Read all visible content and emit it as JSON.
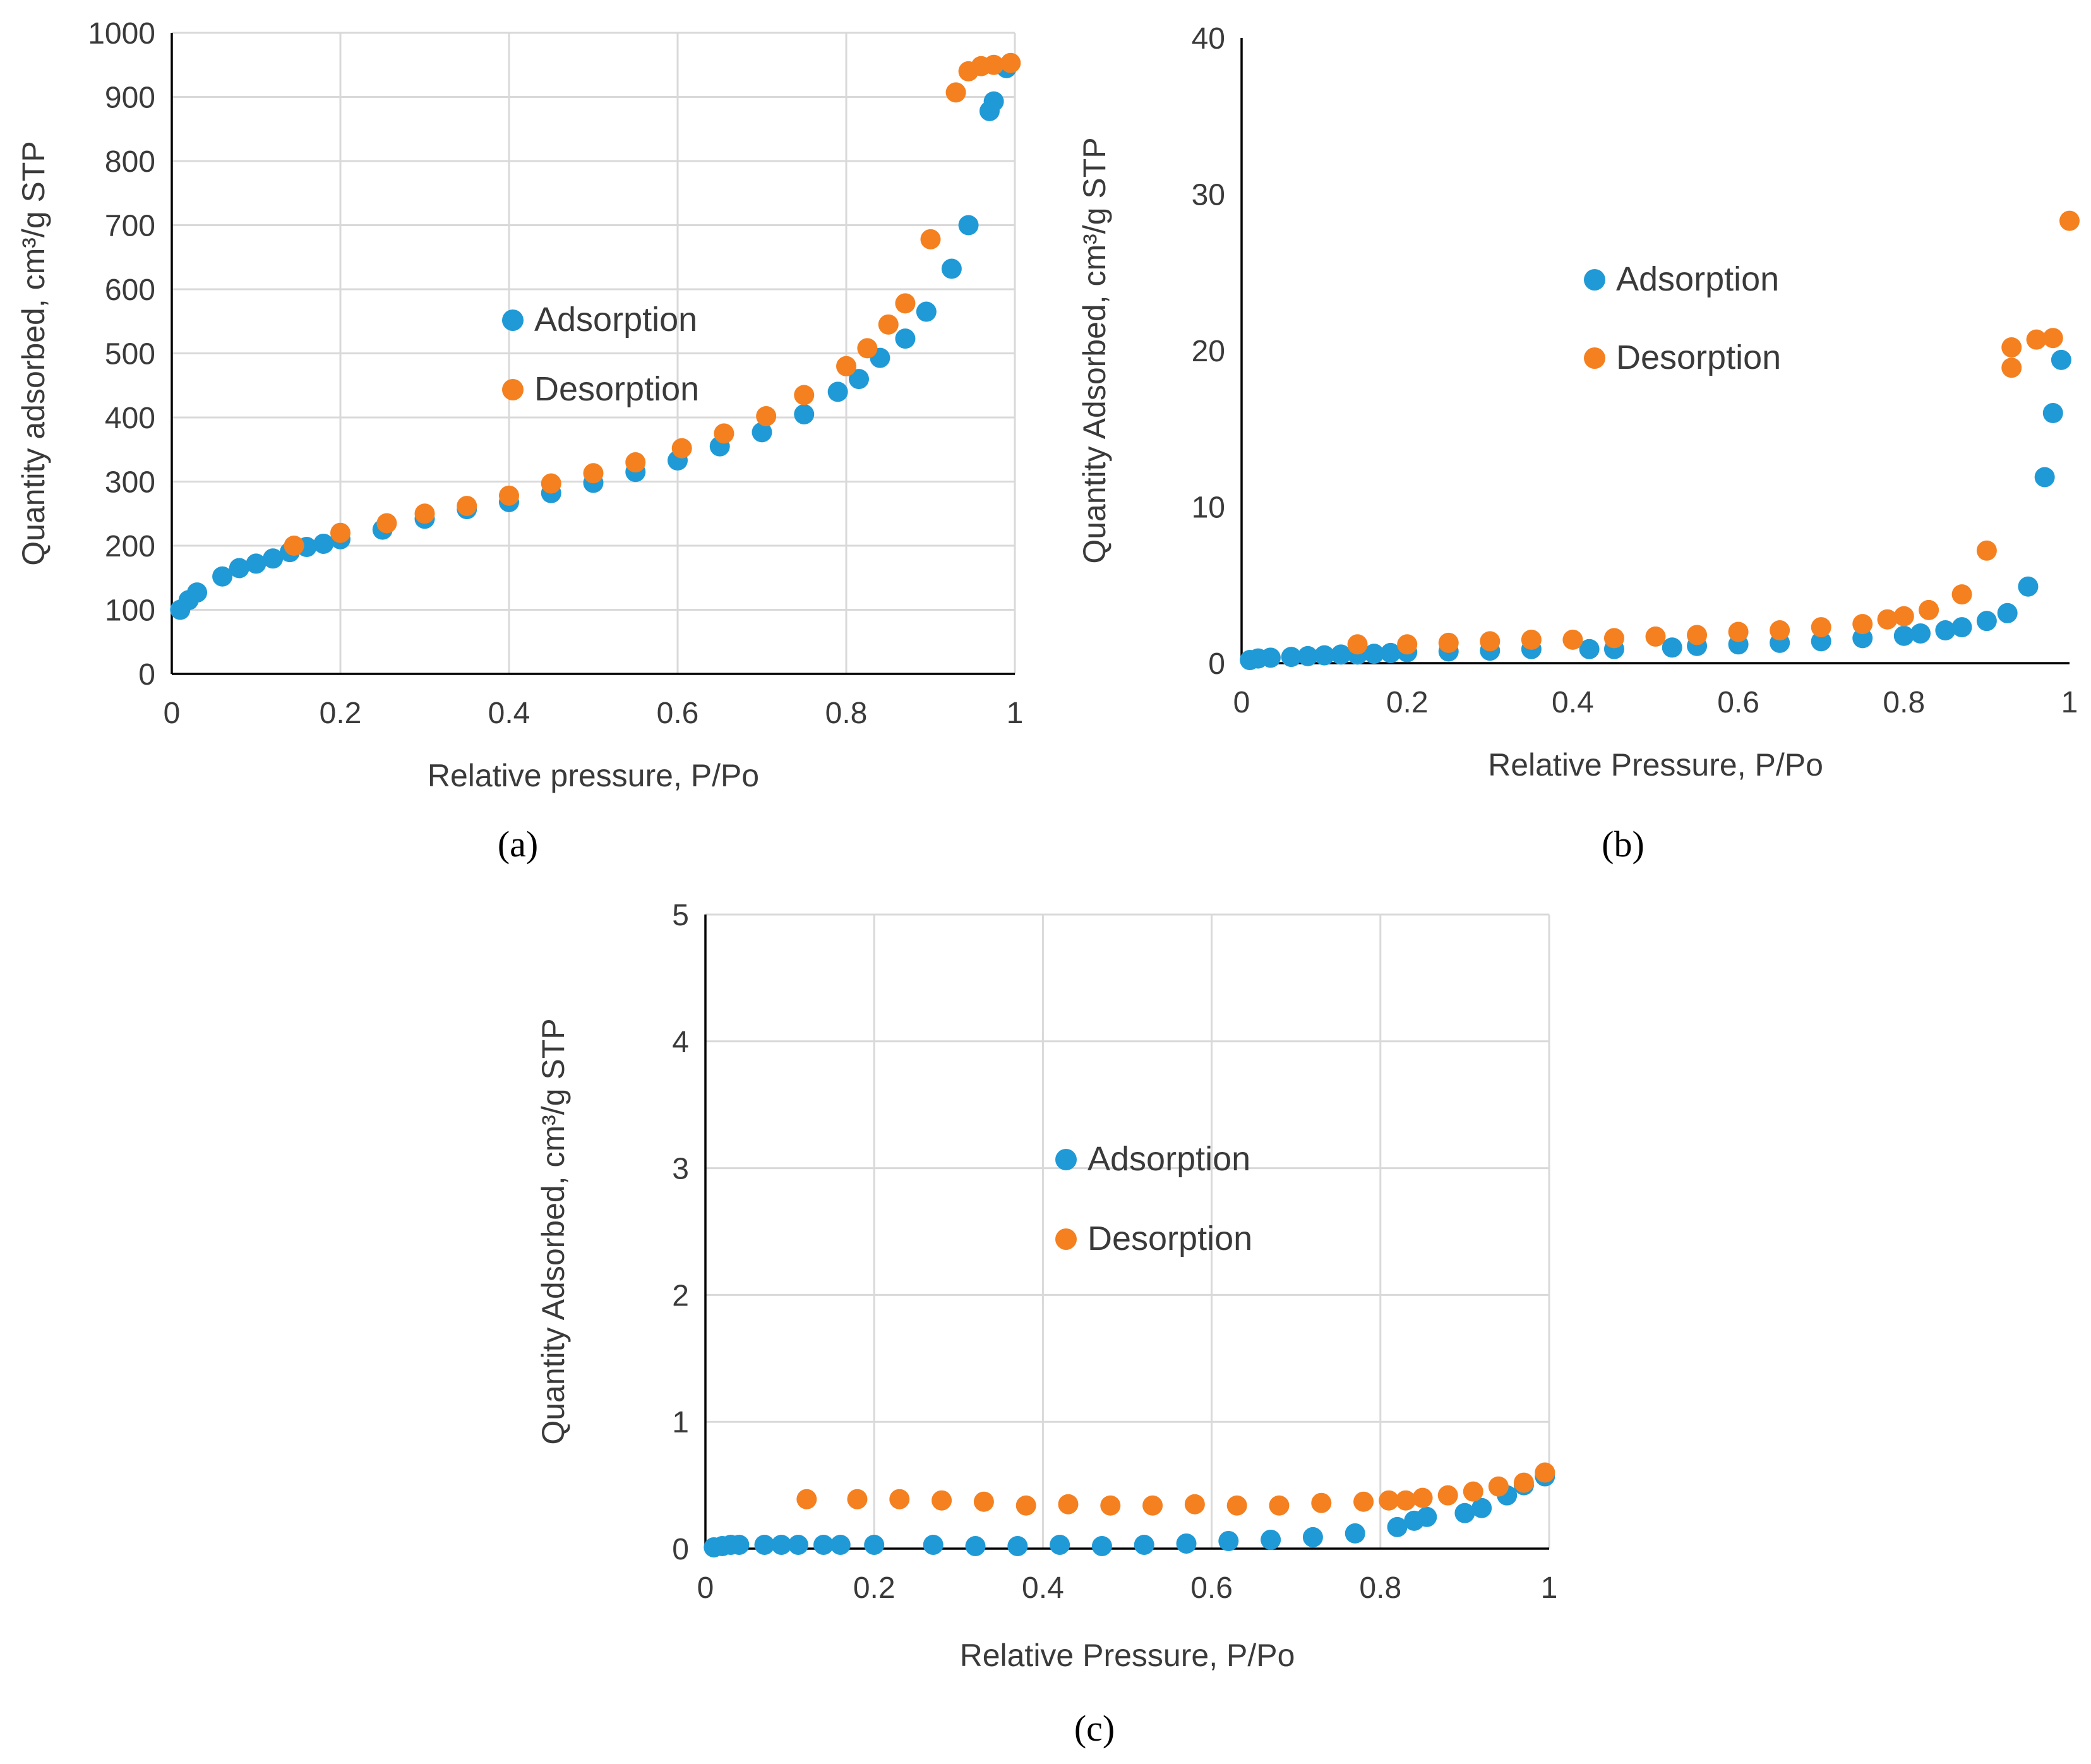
{
  "colors": {
    "adsorption": "#1F9AD6",
    "desorption": "#F5801F"
  },
  "chart_data": [
    {
      "type": "scatter",
      "panel_label": "(a)",
      "xlabel": "Relative pressure, P/Po",
      "ylabel": "Quantity adsorbed, cm³/g STP",
      "xlim": [
        0,
        1
      ],
      "ylim": [
        0,
        1000
      ],
      "xticks": [
        0,
        0.2,
        0.4,
        0.6,
        0.8,
        1
      ],
      "xtick_labels": [
        "0",
        "0.2",
        "0.4",
        "0.6",
        "0.8",
        "1"
      ],
      "yticks": [
        0,
        100,
        200,
        300,
        400,
        500,
        600,
        700,
        800,
        900,
        1000
      ],
      "ytick_labels": [
        "0",
        "100",
        "200",
        "300",
        "400",
        "500",
        "600",
        "700",
        "800",
        "900",
        "1000"
      ],
      "grid": true,
      "legend_position": "center",
      "series": [
        {
          "name": "Adsorption",
          "color": "adsorption",
          "x": [
            0.01,
            0.02,
            0.03,
            0.06,
            0.08,
            0.1,
            0.12,
            0.14,
            0.16,
            0.18,
            0.2,
            0.25,
            0.3,
            0.35,
            0.4,
            0.45,
            0.5,
            0.55,
            0.6,
            0.65,
            0.7,
            0.75,
            0.79,
            0.815,
            0.84,
            0.87,
            0.895,
            0.925,
            0.945,
            0.97,
            0.975,
            0.99
          ],
          "y": [
            100,
            115,
            127,
            152,
            165,
            172,
            180,
            190,
            198,
            203,
            210,
            225,
            242,
            257,
            268,
            282,
            298,
            315,
            333,
            355,
            377,
            405,
            440,
            460,
            493,
            523,
            565,
            632,
            700,
            878,
            893,
            945
          ]
        },
        {
          "name": "Desorption",
          "color": "desorption",
          "x": [
            0.145,
            0.2,
            0.255,
            0.3,
            0.35,
            0.4,
            0.45,
            0.5,
            0.55,
            0.605,
            0.655,
            0.705,
            0.75,
            0.8,
            0.825,
            0.85,
            0.87,
            0.9,
            0.93,
            0.945,
            0.96,
            0.975,
            0.995
          ],
          "y": [
            200,
            220,
            235,
            250,
            262,
            278,
            297,
            313,
            330,
            352,
            375,
            402,
            435,
            480,
            508,
            545,
            578,
            678,
            907,
            940,
            948,
            950,
            953
          ]
        }
      ]
    },
    {
      "type": "scatter",
      "panel_label": "(b)",
      "xlabel": "Relative Pressure, P/Po",
      "ylabel": "Quantity Adsorbed, cm³/g STP",
      "xlim": [
        0,
        1
      ],
      "ylim": [
        0,
        40
      ],
      "xticks": [
        0,
        0.2,
        0.4,
        0.6,
        0.8,
        1
      ],
      "xtick_labels": [
        "0",
        "0.2",
        "0.4",
        "0.6",
        "0.8",
        "1"
      ],
      "yticks": [
        0,
        10,
        20,
        30,
        40
      ],
      "ytick_labels": [
        "0",
        "10",
        "20",
        "30",
        "40"
      ],
      "grid": false,
      "legend_position": "center-right",
      "series": [
        {
          "name": "Adsorption",
          "color": "adsorption",
          "x": [
            0.01,
            0.02,
            0.035,
            0.06,
            0.08,
            0.1,
            0.12,
            0.14,
            0.16,
            0.18,
            0.2,
            0.25,
            0.3,
            0.35,
            0.42,
            0.45,
            0.52,
            0.55,
            0.6,
            0.65,
            0.7,
            0.75,
            0.8,
            0.82,
            0.85,
            0.87,
            0.9,
            0.925,
            0.95,
            0.97,
            0.98,
            0.99
          ],
          "y": [
            0.2,
            0.3,
            0.35,
            0.4,
            0.45,
            0.5,
            0.55,
            0.55,
            0.6,
            0.65,
            0.7,
            0.75,
            0.8,
            0.9,
            0.9,
            0.9,
            1.0,
            1.1,
            1.2,
            1.3,
            1.4,
            1.6,
            1.75,
            1.9,
            2.1,
            2.3,
            2.7,
            3.2,
            4.9,
            11.9,
            16.0,
            19.4
          ]
        },
        {
          "name": "Desorption",
          "color": "desorption",
          "x": [
            0.14,
            0.2,
            0.25,
            0.3,
            0.35,
            0.4,
            0.45,
            0.5,
            0.55,
            0.6,
            0.65,
            0.7,
            0.75,
            0.78,
            0.8,
            0.83,
            0.87,
            0.9,
            0.93,
            0.93,
            0.96,
            0.98,
            1.0
          ],
          "y": [
            1.2,
            1.2,
            1.3,
            1.4,
            1.5,
            1.5,
            1.6,
            1.7,
            1.8,
            2.0,
            2.1,
            2.3,
            2.5,
            2.8,
            3.0,
            3.4,
            4.4,
            7.2,
            18.9,
            20.2,
            20.7,
            20.8,
            28.3
          ]
        }
      ]
    },
    {
      "type": "scatter",
      "panel_label": "(c)",
      "xlabel": "Relative Pressure, P/Po",
      "ylabel": "Quantity Adsorbed, cm³/g STP",
      "xlim": [
        0,
        1
      ],
      "ylim": [
        0,
        5
      ],
      "xticks": [
        0,
        0.2,
        0.4,
        0.6,
        0.8,
        1
      ],
      "xtick_labels": [
        "0",
        "0.2",
        "0.4",
        "0.6",
        "0.8",
        "1"
      ],
      "yticks": [
        0,
        1,
        2,
        3,
        4,
        5
      ],
      "ytick_labels": [
        "0",
        "1",
        "2",
        "3",
        "4",
        "5"
      ],
      "grid": true,
      "legend_position": "center",
      "series": [
        {
          "name": "Adsorption",
          "color": "adsorption",
          "x": [
            0.01,
            0.02,
            0.03,
            0.04,
            0.07,
            0.09,
            0.11,
            0.14,
            0.16,
            0.2,
            0.27,
            0.32,
            0.37,
            0.42,
            0.47,
            0.52,
            0.57,
            0.62,
            0.67,
            0.72,
            0.77,
            0.82,
            0.84,
            0.855,
            0.9,
            0.92,
            0.95,
            0.97,
            0.995
          ],
          "y": [
            0.01,
            0.02,
            0.03,
            0.03,
            0.03,
            0.03,
            0.03,
            0.03,
            0.03,
            0.03,
            0.03,
            0.02,
            0.02,
            0.03,
            0.02,
            0.03,
            0.04,
            0.06,
            0.07,
            0.09,
            0.12,
            0.17,
            0.22,
            0.25,
            0.28,
            0.32,
            0.42,
            0.5,
            0.57
          ]
        },
        {
          "name": "Desorption",
          "color": "desorption",
          "x": [
            0.12,
            0.18,
            0.23,
            0.28,
            0.33,
            0.38,
            0.43,
            0.48,
            0.53,
            0.58,
            0.63,
            0.68,
            0.73,
            0.78,
            0.81,
            0.83,
            0.85,
            0.88,
            0.91,
            0.94,
            0.97,
            0.995
          ],
          "y": [
            0.39,
            0.39,
            0.39,
            0.38,
            0.37,
            0.34,
            0.35,
            0.34,
            0.34,
            0.35,
            0.34,
            0.34,
            0.36,
            0.37,
            0.38,
            0.38,
            0.4,
            0.42,
            0.45,
            0.49,
            0.52,
            0.6
          ]
        }
      ]
    }
  ]
}
